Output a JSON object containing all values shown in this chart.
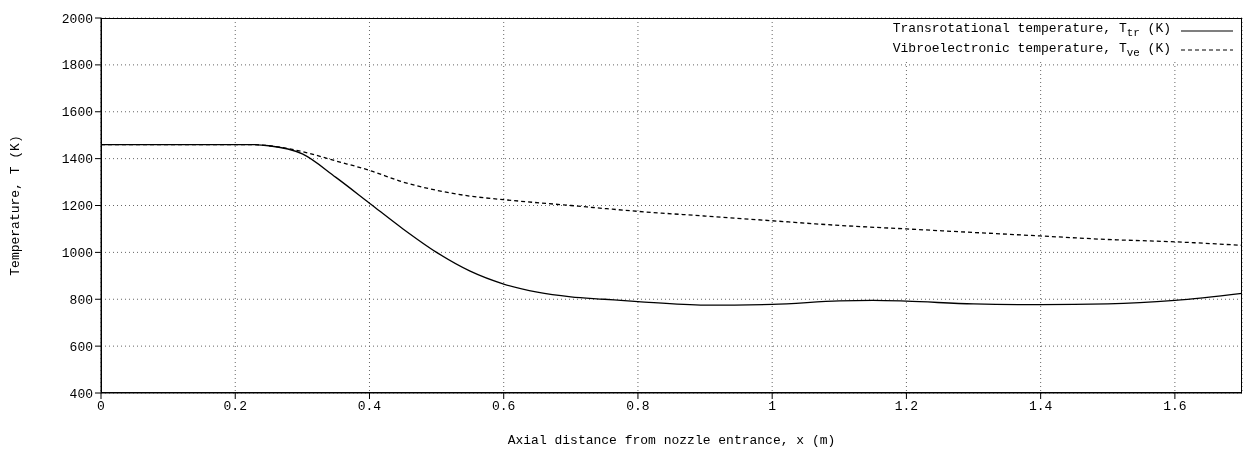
{
  "chart_data": {
    "type": "line",
    "xlabel": "Axial distance from nozzle entrance, x (m)",
    "ylabel": "Temperature, T (K)",
    "xlim": [
      0,
      1.7
    ],
    "xticks": [
      0,
      0.2,
      0.4,
      0.6,
      0.8,
      1,
      1.2,
      1.4,
      1.6
    ],
    "ylim": [
      400,
      2000
    ],
    "yticks": [
      400,
      600,
      800,
      1000,
      1200,
      1400,
      1600,
      1800,
      2000
    ],
    "grid": true,
    "legend": "top right",
    "marker": "none",
    "series": [
      {
        "name": "Transrotational temperature, T$_{tr}$ (K)",
        "color": "#000000",
        "line_style": "solid",
        "x": [
          0,
          0.1,
          0.2,
          0.22,
          0.25,
          0.3,
          0.35,
          0.4,
          0.45,
          0.5,
          0.55,
          0.6,
          0.65,
          0.7,
          0.75,
          0.8,
          0.9,
          1.0,
          1.1,
          1.15,
          1.2,
          1.3,
          1.4,
          1.5,
          1.6,
          1.7
        ],
        "values": [
          1460,
          1460,
          1460,
          1460,
          1455,
          1420,
          1320,
          1210,
          1100,
          1000,
          920,
          865,
          830,
          810,
          800,
          790,
          775,
          778,
          793,
          795,
          792,
          780,
          777,
          780,
          795,
          825
        ]
      },
      {
        "name": "Vibroelectronic temperature, T$_{ve}$ (K)",
        "color": "#000000",
        "line_style": "dashed",
        "x": [
          0,
          0.1,
          0.2,
          0.22,
          0.25,
          0.3,
          0.35,
          0.4,
          0.45,
          0.5,
          0.55,
          0.6,
          0.7,
          0.8,
          0.9,
          1.0,
          1.1,
          1.2,
          1.3,
          1.4,
          1.5,
          1.6,
          1.7
        ],
        "values": [
          1460,
          1460,
          1460,
          1460,
          1455,
          1430,
          1390,
          1350,
          1300,
          1265,
          1240,
          1225,
          1200,
          1175,
          1155,
          1135,
          1115,
          1100,
          1085,
          1070,
          1055,
          1045,
          1030
        ]
      }
    ]
  }
}
